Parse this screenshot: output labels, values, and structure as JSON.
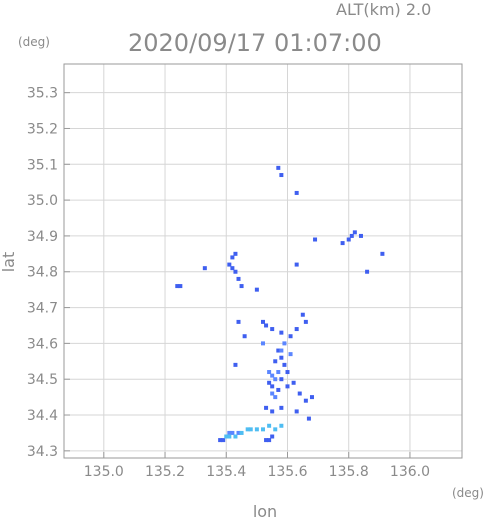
{
  "header": {
    "altitude_label": "ALT(km) 2.0",
    "timestamp": "2020/09/17 01:07:00"
  },
  "chart_data": {
    "type": "scatter",
    "title": "2020/09/17 01:07:00",
    "subtitle": "ALT(km) 2.0",
    "xlabel": "lon",
    "ylabel": "lat",
    "x_unit": "(deg)",
    "y_unit": "(deg)",
    "xlim": [
      134.87,
      136.17
    ],
    "ylim": [
      34.28,
      35.38
    ],
    "grid": true,
    "x_ticks": [
      "135.0",
      "135.2",
      "135.4",
      "135.6",
      "135.8",
      "136.0"
    ],
    "y_ticks": [
      "34.3",
      "34.4",
      "34.5",
      "34.6",
      "34.7",
      "34.8",
      "34.9",
      "35.0",
      "35.1",
      "35.2",
      "35.3"
    ],
    "colors": {
      "strong": "#3f5ff0",
      "medium": "#5b86ff",
      "light": "#4fbdf2"
    },
    "series": [
      {
        "color_key": "strong",
        "points": [
          [
            135.57,
            35.09
          ],
          [
            135.58,
            35.07
          ],
          [
            135.63,
            35.02
          ],
          [
            135.43,
            34.85
          ],
          [
            135.42,
            34.84
          ],
          [
            135.41,
            34.82
          ],
          [
            135.43,
            34.8
          ],
          [
            135.44,
            34.78
          ],
          [
            135.45,
            34.76
          ],
          [
            135.42,
            34.81
          ],
          [
            135.24,
            34.76
          ],
          [
            135.25,
            34.76
          ],
          [
            135.33,
            34.81
          ],
          [
            135.5,
            34.75
          ],
          [
            135.63,
            34.82
          ],
          [
            135.69,
            34.89
          ],
          [
            135.78,
            34.88
          ],
          [
            135.8,
            34.89
          ],
          [
            135.81,
            34.9
          ],
          [
            135.82,
            34.91
          ],
          [
            135.84,
            34.9
          ],
          [
            135.86,
            34.8
          ],
          [
            135.91,
            34.85
          ],
          [
            135.52,
            34.66
          ],
          [
            135.53,
            34.65
          ],
          [
            135.55,
            34.64
          ],
          [
            135.58,
            34.63
          ],
          [
            135.61,
            34.62
          ],
          [
            135.63,
            34.64
          ],
          [
            135.65,
            34.68
          ],
          [
            135.66,
            34.66
          ],
          [
            135.57,
            34.58
          ],
          [
            135.58,
            34.56
          ],
          [
            135.56,
            34.55
          ],
          [
            135.59,
            34.54
          ],
          [
            135.6,
            34.52
          ],
          [
            135.54,
            34.49
          ],
          [
            135.55,
            34.48
          ],
          [
            135.57,
            34.47
          ],
          [
            135.58,
            34.5
          ],
          [
            135.6,
            34.48
          ],
          [
            135.62,
            34.49
          ],
          [
            135.64,
            34.46
          ],
          [
            135.66,
            34.44
          ],
          [
            135.68,
            34.45
          ],
          [
            135.53,
            34.42
          ],
          [
            135.55,
            34.41
          ],
          [
            135.58,
            34.42
          ],
          [
            135.63,
            34.41
          ],
          [
            135.67,
            34.39
          ],
          [
            135.43,
            34.54
          ],
          [
            135.44,
            34.66
          ],
          [
            135.46,
            34.62
          ],
          [
            135.38,
            34.33
          ],
          [
            135.39,
            34.33
          ],
          [
            135.53,
            34.33
          ],
          [
            135.54,
            34.33
          ],
          [
            135.55,
            34.34
          ]
        ]
      },
      {
        "color_key": "medium",
        "points": [
          [
            135.54,
            34.52
          ],
          [
            135.55,
            34.51
          ],
          [
            135.56,
            34.5
          ],
          [
            135.57,
            34.52
          ],
          [
            135.55,
            34.46
          ],
          [
            135.56,
            34.45
          ],
          [
            135.58,
            34.58
          ],
          [
            135.59,
            34.6
          ],
          [
            135.61,
            34.57
          ],
          [
            135.52,
            34.6
          ],
          [
            135.41,
            34.35
          ],
          [
            135.42,
            34.35
          ],
          [
            135.44,
            34.35
          ]
        ]
      },
      {
        "color_key": "light",
        "points": [
          [
            135.4,
            34.34
          ],
          [
            135.41,
            34.34
          ],
          [
            135.43,
            34.34
          ],
          [
            135.45,
            34.35
          ],
          [
            135.47,
            34.36
          ],
          [
            135.48,
            34.36
          ],
          [
            135.5,
            34.36
          ],
          [
            135.52,
            34.36
          ],
          [
            135.54,
            34.37
          ],
          [
            135.56,
            34.36
          ],
          [
            135.58,
            34.37
          ]
        ]
      }
    ]
  }
}
